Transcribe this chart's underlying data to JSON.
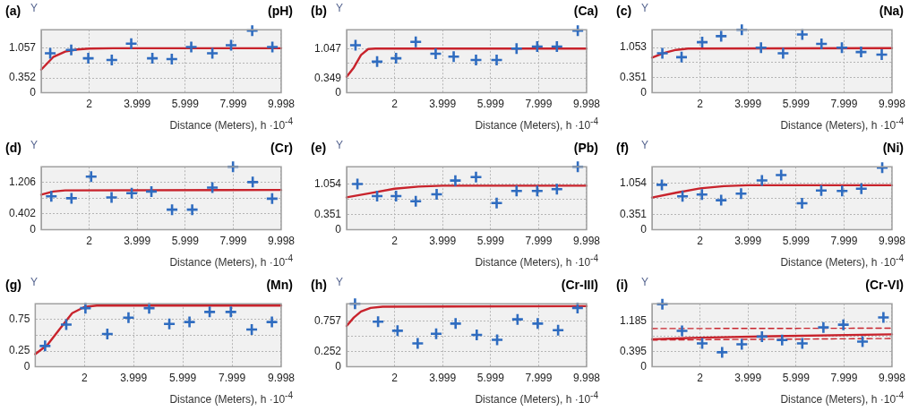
{
  "chart_data": [
    {
      "type": "scatter",
      "title": "(a)",
      "subtitle": "(pH)",
      "ylabel": "Y",
      "xlabel": "Distance (Meters), h ·10$^{-4}$",
      "xlim": [
        0,
        9.998
      ],
      "ylim": [
        0,
        1.5
      ],
      "xticks": [
        2,
        3.999,
        5.999,
        7.999,
        9.998
      ],
      "yticks": [
        0,
        0.352,
        {
          "value": 0.704,
          "label": null
        },
        1.057
      ],
      "grid": true,
      "series": [
        {
          "type": "scatter",
          "marker": "cross",
          "color": "#2f6cc0",
          "x": [
            0.375,
            1.25,
            1.96,
            2.94,
            3.75,
            4.63,
            5.44,
            6.25,
            7.13,
            7.91,
            8.79,
            9.63
          ],
          "values": [
            0.94,
            1.02,
            0.82,
            0.78,
            1.17,
            0.82,
            0.8,
            1.09,
            0.94,
            1.13,
            1.48,
            1.09
          ]
        },
        {
          "type": "line",
          "marker": "none",
          "line_style": "solid",
          "color": "#c8232c",
          "x": [
            0,
            0.5,
            1,
            1.5,
            2,
            3,
            9.998
          ],
          "values": [
            0.55,
            0.85,
            0.98,
            1.03,
            1.05,
            1.06,
            1.06
          ]
        }
      ]
    },
    {
      "type": "scatter",
      "title": "(b)",
      "subtitle": "(Ca)",
      "ylabel": "Y",
      "xlabel": "Distance (Meters), h ·10$^{-4}$",
      "xlim": [
        0,
        9.998
      ],
      "ylim": [
        0,
        1.5
      ],
      "xticks": [
        2,
        3.999,
        5.999,
        7.999,
        9.998
      ],
      "yticks": [
        0,
        0.349,
        {
          "value": 0.698,
          "label": null
        },
        1.047
      ],
      "grid": true,
      "series": [
        {
          "type": "scatter",
          "marker": "cross",
          "color": "#2f6cc0",
          "x": [
            0.37,
            1.27,
            2.06,
            2.88,
            3.71,
            4.46,
            5.39,
            6.25,
            7.08,
            7.94,
            8.76,
            9.63
          ],
          "values": [
            1.13,
            0.74,
            0.82,
            1.21,
            0.93,
            0.86,
            0.78,
            0.78,
            1.05,
            1.1,
            1.1,
            1.48
          ]
        },
        {
          "type": "line",
          "marker": "none",
          "line_style": "solid",
          "color": "#c8232c",
          "x": [
            0,
            0.3,
            0.6,
            0.9,
            1.2,
            9.998
          ],
          "values": [
            0.38,
            0.6,
            0.9,
            1.04,
            1.05,
            1.05
          ]
        }
      ]
    },
    {
      "type": "scatter",
      "title": "(c)",
      "subtitle": "(Na)",
      "ylabel": "Y",
      "xlabel": "Distance (Meters), h ·10$^{-4}$",
      "xlim": [
        0,
        9.998
      ],
      "ylim": [
        0,
        1.47
      ],
      "xticks": [
        2,
        3.999,
        5.999,
        7.999,
        9.998
      ],
      "yticks": [
        0,
        0.351,
        {
          "value": 0.702,
          "label": null
        },
        1.053
      ],
      "grid": true,
      "series": [
        {
          "type": "scatter",
          "marker": "cross",
          "color": "#2f6cc0",
          "x": [
            0.43,
            1.23,
            2.09,
            2.88,
            3.74,
            4.54,
            5.46,
            6.26,
            7.06,
            7.91,
            8.71,
            9.57
          ],
          "values": [
            0.92,
            0.83,
            1.18,
            1.32,
            1.47,
            1.05,
            0.92,
            1.36,
            1.14,
            1.05,
            0.95,
            0.89
          ]
        },
        {
          "type": "line",
          "marker": "none",
          "line_style": "solid",
          "color": "#c8232c",
          "x": [
            0,
            0.5,
            1,
            1.5,
            9.998
          ],
          "values": [
            0.82,
            0.93,
            1.0,
            1.03,
            1.04
          ]
        }
      ]
    },
    {
      "type": "scatter",
      "title": "(d)",
      "subtitle": "(Cr)",
      "ylabel": "Y",
      "xlabel": "Distance (Meters), h ·10$^{-4}$",
      "xlim": [
        0,
        9.998
      ],
      "ylim": [
        0,
        1.6
      ],
      "xticks": [
        2,
        3.999,
        5.999,
        7.999,
        9.998
      ],
      "yticks": [
        0,
        0.402,
        {
          "value": 0.804,
          "label": null
        },
        1.206
      ],
      "grid": true,
      "series": [
        {
          "type": "scatter",
          "marker": "cross",
          "color": "#2f6cc0",
          "x": [
            0.42,
            1.26,
            2.08,
            2.93,
            3.77,
            4.59,
            5.45,
            6.29,
            7.13,
            7.99,
            8.81,
            9.62
          ],
          "values": [
            0.85,
            0.8,
            1.35,
            0.82,
            0.93,
            0.97,
            0.51,
            0.51,
            1.07,
            1.6,
            1.21,
            0.79
          ]
        },
        {
          "type": "line",
          "marker": "none",
          "line_style": "solid",
          "color": "#c8232c",
          "x": [
            0,
            0.5,
            1,
            9.998
          ],
          "values": [
            0.89,
            0.97,
            1.0,
            1.01
          ]
        }
      ]
    },
    {
      "type": "scatter",
      "title": "(e)",
      "subtitle": "(Pb)",
      "ylabel": "Y",
      "xlabel": "Distance (Meters), h ·10$^{-4}$",
      "xlim": [
        0,
        9.998
      ],
      "ylim": [
        0,
        1.46
      ],
      "xticks": [
        2,
        3.999,
        5.999,
        7.999,
        9.998
      ],
      "yticks": [
        0,
        0.351,
        {
          "value": 0.703,
          "label": null
        },
        1.054
      ],
      "grid": true,
      "series": [
        {
          "type": "scatter",
          "marker": "cross",
          "color": "#2f6cc0",
          "x": [
            0.45,
            1.27,
            2.06,
            2.88,
            3.75,
            4.53,
            5.39,
            6.25,
            7.08,
            7.94,
            8.76,
            9.63
          ],
          "values": [
            1.06,
            0.78,
            0.78,
            0.66,
            0.82,
            1.14,
            1.22,
            0.62,
            0.9,
            0.9,
            0.94,
            1.46
          ]
        },
        {
          "type": "line",
          "marker": "none",
          "line_style": "solid",
          "color": "#c8232c",
          "x": [
            0,
            1,
            2,
            3,
            4,
            9.998
          ],
          "values": [
            0.75,
            0.85,
            0.95,
            1.0,
            1.02,
            1.02
          ]
        }
      ]
    },
    {
      "type": "scatter",
      "title": "(f)",
      "subtitle": "(Ni)",
      "ylabel": "Y",
      "xlabel": "Distance (Meters), h ·10$^{-4}$",
      "xlim": [
        0,
        9.998
      ],
      "ylim": [
        0,
        1.43
      ],
      "xticks": [
        2,
        3.999,
        5.999,
        7.999,
        9.998
      ],
      "yticks": [
        0,
        0.351,
        {
          "value": 0.703,
          "label": null
        },
        1.054
      ],
      "grid": true,
      "series": [
        {
          "type": "scatter",
          "marker": "cross",
          "color": "#2f6cc0",
          "x": [
            0.41,
            1.27,
            2.08,
            2.88,
            3.71,
            4.58,
            5.38,
            6.25,
            7.05,
            7.92,
            8.72,
            9.59
          ],
          "values": [
            1.02,
            0.76,
            0.8,
            0.67,
            0.82,
            1.12,
            1.24,
            0.6,
            0.89,
            0.88,
            0.93,
            1.41
          ]
        },
        {
          "type": "line",
          "marker": "none",
          "line_style": "solid",
          "color": "#c8232c",
          "x": [
            0,
            1,
            2,
            3,
            4,
            9.998
          ],
          "values": [
            0.73,
            0.84,
            0.94,
            0.99,
            1.01,
            1.01
          ]
        }
      ]
    },
    {
      "type": "scatter",
      "title": "(g)",
      "subtitle": "(Mn)",
      "ylabel": "Y",
      "xlabel": "Distance (Meters), h ·10$^{-4}$",
      "xlim": [
        0,
        9.998
      ],
      "ylim": [
        0,
        1.0
      ],
      "xticks": [
        2,
        3.999,
        5.999,
        7.999,
        9.998
      ],
      "yticks": [
        0,
        0.25,
        {
          "value": 0.5,
          "label": null
        },
        0.75
      ],
      "grid": true,
      "series": [
        {
          "type": "scatter",
          "marker": "cross",
          "color": "#2f6cc0",
          "x": [
            0.4,
            1.26,
            2.04,
            2.93,
            3.79,
            4.63,
            5.45,
            6.27,
            7.09,
            7.95,
            8.8,
            9.62
          ],
          "values": [
            0.33,
            0.67,
            0.93,
            0.52,
            0.78,
            0.93,
            0.68,
            0.71,
            0.87,
            0.87,
            0.59,
            0.71
          ]
        },
        {
          "type": "line",
          "marker": "none",
          "line_style": "solid",
          "color": "#c8232c",
          "x": [
            0,
            0.5,
            1,
            1.5,
            2,
            2.5,
            9.998
          ],
          "values": [
            0.2,
            0.35,
            0.6,
            0.85,
            0.95,
            0.97,
            0.97
          ]
        }
      ]
    },
    {
      "type": "scatter",
      "title": "(h)",
      "subtitle": "(Cr-III)",
      "ylabel": "Y",
      "xlabel": "Distance (Meters), h ·10$^{-4}$",
      "xlim": [
        0,
        9.998
      ],
      "ylim": [
        0,
        1.05
      ],
      "xticks": [
        2,
        3.999,
        5.999,
        7.999,
        9.998
      ],
      "yticks": [
        0,
        0.252,
        {
          "value": 0.505,
          "label": null
        },
        0.757
      ],
      "grid": true,
      "series": [
        {
          "type": "scatter",
          "marker": "cross",
          "color": "#2f6cc0",
          "x": [
            0.35,
            1.31,
            2.12,
            2.96,
            3.73,
            4.54,
            5.42,
            6.27,
            7.12,
            7.96,
            8.81,
            9.62
          ],
          "values": [
            1.05,
            0.75,
            0.6,
            0.39,
            0.55,
            0.72,
            0.53,
            0.45,
            0.79,
            0.72,
            0.61,
            0.98
          ]
        },
        {
          "type": "line",
          "marker": "none",
          "line_style": "solid",
          "color": "#c8232c",
          "x": [
            0,
            0.3,
            0.6,
            1,
            1.5,
            9.998
          ],
          "values": [
            0.68,
            0.82,
            0.92,
            0.98,
            1.0,
            1.01
          ]
        }
      ]
    },
    {
      "type": "scatter",
      "title": "(i)",
      "subtitle": "(Cr-VI)",
      "ylabel": "Y",
      "xlabel": "Distance (Meters), h ·10$^{-4}$",
      "xlim": [
        0,
        9.998
      ],
      "ylim": [
        0,
        1.65
      ],
      "xticks": [
        2,
        3.999,
        5.999,
        7.999,
        9.998
      ],
      "yticks": [
        0,
        0.395,
        {
          "value": 0.79,
          "label": null
        },
        1.185
      ],
      "grid": true,
      "series": [
        {
          "type": "scatter",
          "marker": "cross",
          "color": "#2f6cc0",
          "x": [
            0.43,
            1.25,
            2.09,
            2.92,
            3.74,
            4.58,
            5.42,
            6.26,
            7.14,
            7.97,
            8.77,
            9.64
          ],
          "values": [
            1.64,
            0.94,
            0.61,
            0.38,
            0.59,
            0.79,
            0.7,
            0.61,
            1.03,
            1.1,
            0.66,
            1.29
          ]
        },
        {
          "type": "line",
          "marker": "none",
          "line_style": "solid",
          "color": "#c8232c",
          "x": [
            0,
            2,
            5,
            9.998
          ],
          "values": [
            0.72,
            0.76,
            0.8,
            0.85
          ]
        },
        {
          "type": "line",
          "marker": "none",
          "line_style": "dashed",
          "color": "#c8232c",
          "x": [
            0,
            9.998
          ],
          "values": [
            1.0,
            1.01
          ]
        },
        {
          "type": "line",
          "marker": "none",
          "line_style": "dashed",
          "color": "#c8232c",
          "x": [
            0,
            9.998
          ],
          "values": [
            0.7,
            0.74
          ]
        }
      ]
    }
  ]
}
